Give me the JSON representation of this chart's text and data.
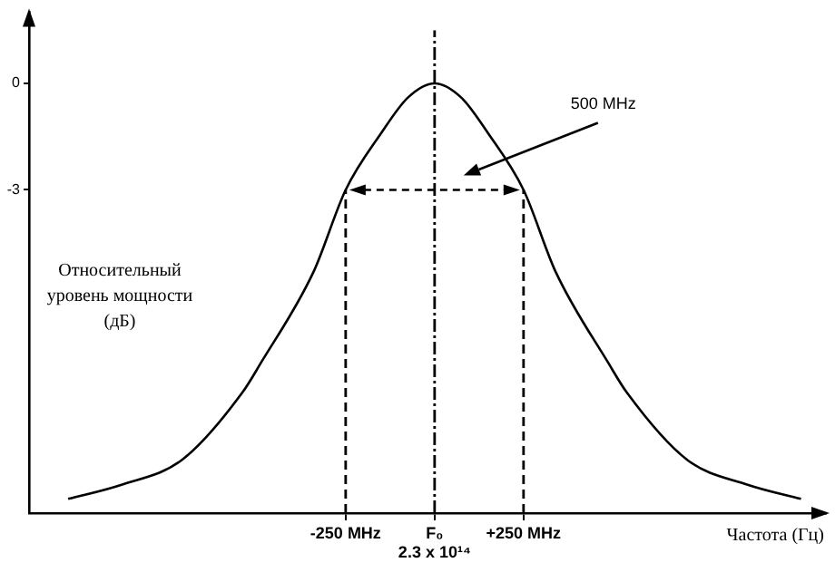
{
  "chart_data": {
    "type": "line",
    "xlabel": "Частота (Гц)",
    "ylabel": "Относительный уровень мощности (дБ)",
    "x": [
      -1030,
      -880,
      -710,
      -540,
      -490,
      -340,
      -250,
      -150,
      -75,
      0,
      75,
      150,
      250,
      340,
      490,
      540,
      710,
      880,
      1030
    ],
    "series": [
      {
        "color": "#000000",
        "values": [
          -11.7,
          -11.3,
          -10.6,
          -8.7,
          -7.9,
          -5.3,
          -3,
          -1.4,
          -0.4,
          0,
          -0.4,
          -1.4,
          -3,
          -5.3,
          -7.9,
          -8.7,
          -10.6,
          -11.3,
          -11.7
        ]
      }
    ],
    "xlim": [
      -1140,
      1100
    ],
    "ylim": [
      -12.1,
      2
    ],
    "xticks": [
      {
        "value": -250,
        "label": "-250 MHz"
      },
      {
        "value": 0,
        "label": "F₀\n2.3 x 10¹⁴"
      },
      {
        "value": 250,
        "label": "+250 MHz"
      }
    ],
    "yticks": [
      0,
      -3
    ],
    "ref_lines": [
      {
        "axis": "x",
        "value": -250,
        "line_style": "dashed"
      },
      {
        "axis": "x",
        "value": 250,
        "line_style": "dashed"
      },
      {
        "axis": "x",
        "value": 0,
        "line_style": "dotted"
      }
    ],
    "annotations": [
      "500 MHz"
    ],
    "grid": false,
    "legend": false,
    "marker": "none",
    "line_style": "solid"
  }
}
